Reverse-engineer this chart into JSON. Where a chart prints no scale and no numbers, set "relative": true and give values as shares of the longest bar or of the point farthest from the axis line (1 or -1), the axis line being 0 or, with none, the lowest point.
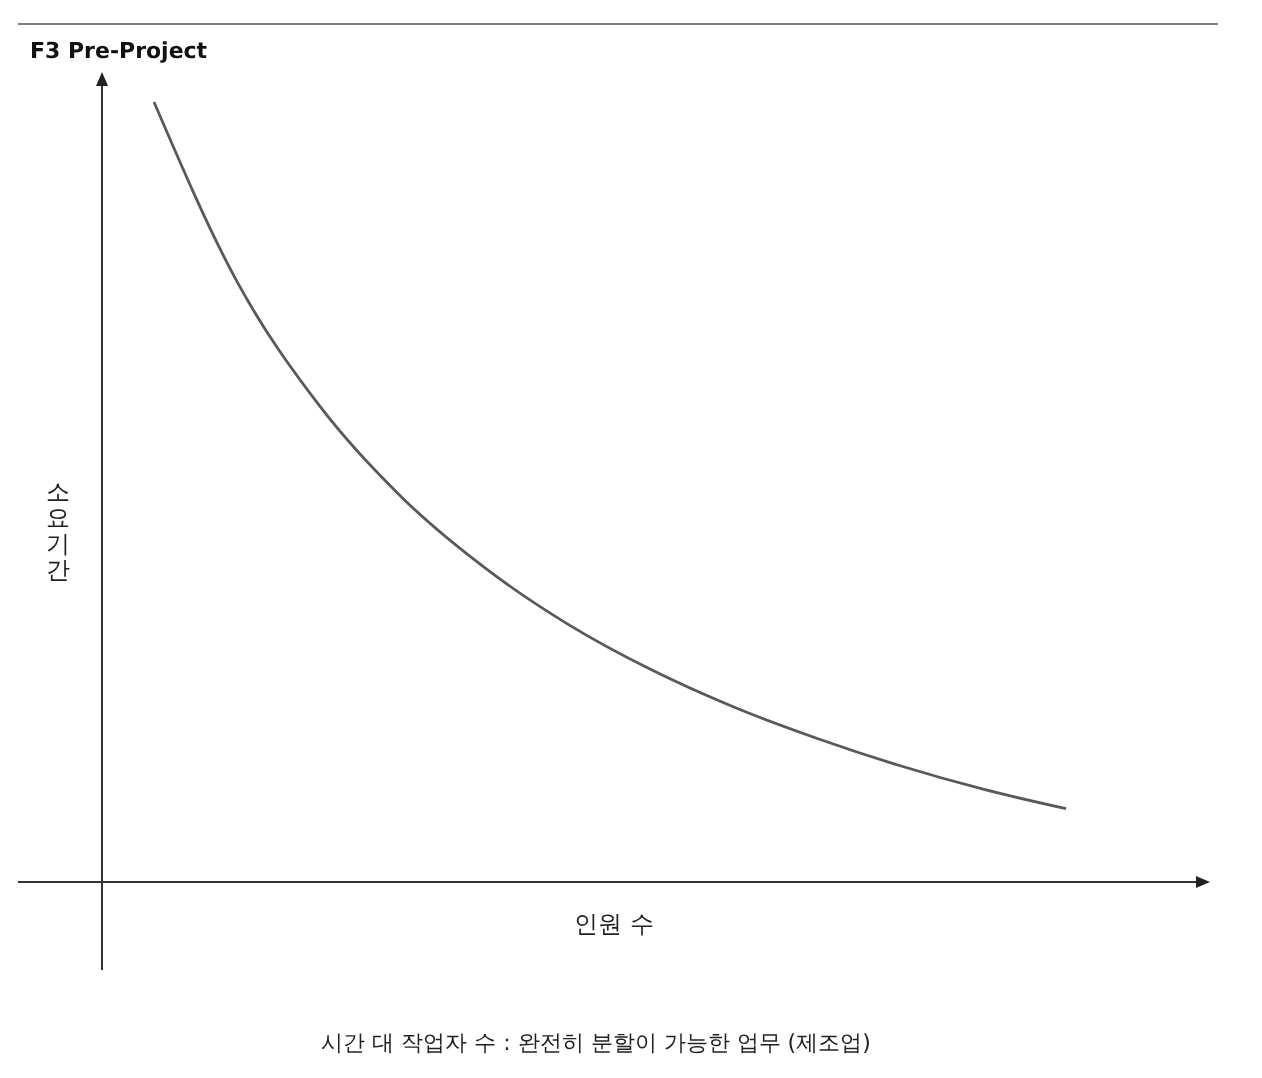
{
  "chart_data": {
    "type": "line",
    "title": "F3 Pre-Project",
    "xlabel": "인원 수",
    "ylabel": "소요기간",
    "annotations": [
      "시간 대 작업자 수 : 완전히 분할이 가능한 업무 (제조업)"
    ],
    "relative": true,
    "categories": [
      null,
      null,
      null,
      null,
      null,
      null,
      null,
      null,
      null,
      null,
      null,
      null
    ],
    "series": [
      {
        "color": "#595959",
        "values": [
          1,
          0.77,
          0.61,
          0.492,
          0.402,
          0.33,
          0.272,
          0.224,
          0.184,
          0.149,
          0.119,
          0.094
        ]
      }
    ]
  }
}
